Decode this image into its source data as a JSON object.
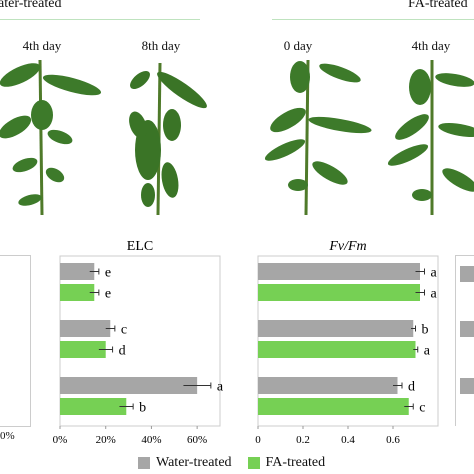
{
  "header": {
    "water_label": "ater-treated",
    "fa_label": "FA-treated",
    "water_line_color": "#8fcf8f",
    "fa_line_color": "#8fcf8f"
  },
  "photos": {
    "water_days": [
      "4th day",
      "8th day"
    ],
    "fa_days": [
      "0 day",
      "4th day"
    ]
  },
  "colors": {
    "water": "#a6a6a6",
    "fa": "#76d054",
    "leaf": "#3d7a2a",
    "leaf_dark": "#2c5f1e"
  },
  "legend": {
    "water": "Water-treated",
    "fa": "FA-treated"
  },
  "left_fragment": {
    "tick": "0%"
  },
  "chart_data": [
    {
      "type": "bar",
      "orientation": "horizontal",
      "title": "ELC",
      "title_style": "normal",
      "xlim": [
        0,
        70
      ],
      "xticks": [
        0,
        20,
        40,
        60
      ],
      "xtick_labels": [
        "0%",
        "20%",
        "40%",
        "60%"
      ],
      "groups": [
        {
          "water": 15,
          "water_err": 2,
          "water_letter": "e",
          "fa": 15,
          "fa_err": 2,
          "fa_letter": "e"
        },
        {
          "water": 22,
          "water_err": 2,
          "water_letter": "c",
          "fa": 20,
          "fa_err": 3,
          "fa_letter": "d"
        },
        {
          "water": 60,
          "water_err": 6,
          "water_letter": "a",
          "fa": 29,
          "fa_err": 3,
          "fa_letter": "b"
        }
      ]
    },
    {
      "type": "bar",
      "orientation": "horizontal",
      "title": "Fv/Fm",
      "title_style": "italic",
      "xlim": [
        0,
        0.8
      ],
      "xticks": [
        0,
        0.2,
        0.4,
        0.6
      ],
      "xtick_labels": [
        "0",
        "0.2",
        "0.4",
        "0.6"
      ],
      "groups": [
        {
          "water": 0.72,
          "water_err": 0.02,
          "water_letter": "a",
          "fa": 0.72,
          "fa_err": 0.02,
          "fa_letter": "a"
        },
        {
          "water": 0.69,
          "water_err": 0.01,
          "water_letter": "b",
          "fa": 0.7,
          "fa_err": 0.01,
          "fa_letter": "a"
        },
        {
          "water": 0.62,
          "water_err": 0.02,
          "water_letter": "d",
          "fa": 0.67,
          "fa_err": 0.02,
          "fa_letter": "c"
        }
      ]
    }
  ]
}
